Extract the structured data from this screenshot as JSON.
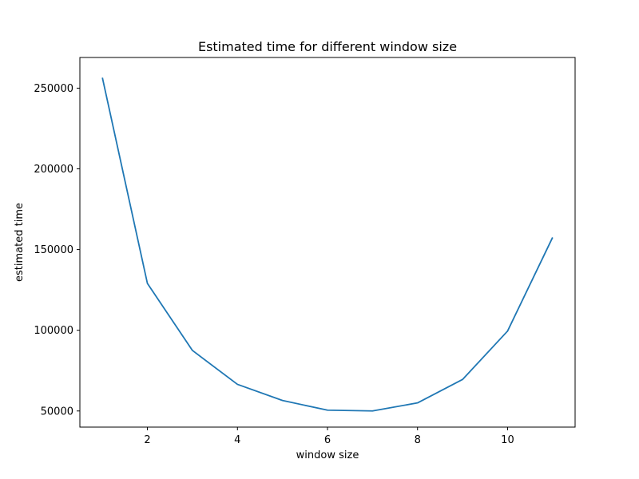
{
  "chart_data": {
    "type": "line",
    "title": "Estimated time for different window size",
    "xlabel": "window size",
    "ylabel": "estimated time",
    "xlim": [
      0.5,
      11.5
    ],
    "ylim": [
      40000,
      269000
    ],
    "x_ticks": [
      2,
      4,
      6,
      8,
      10
    ],
    "y_ticks": [
      50000,
      100000,
      150000,
      200000,
      250000
    ],
    "grid": false,
    "legend": "none",
    "series": [
      {
        "color": "#1f77b4",
        "x": [
          1,
          2,
          3,
          4,
          5,
          6,
          7,
          8,
          9,
          10,
          11
        ],
        "y": [
          256500,
          129000,
          87500,
          66500,
          56500,
          50500,
          50000,
          55000,
          69500,
          99500,
          157500
        ]
      }
    ]
  }
}
